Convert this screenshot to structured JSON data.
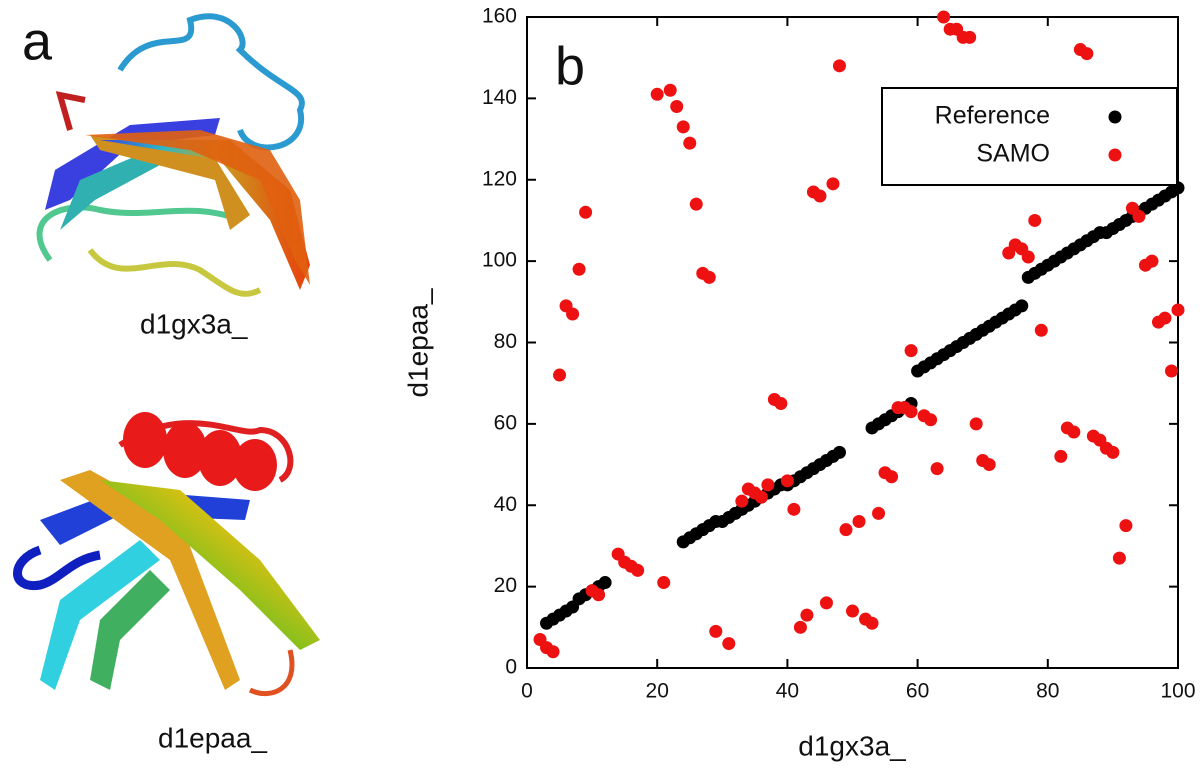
{
  "panel_a": {
    "label": "a",
    "structures": [
      "d1gx3a_",
      "d1epaa_"
    ]
  },
  "chart_data": {
    "type": "scatter",
    "panel_label": "b",
    "xlabel": "d1gx3a_",
    "ylabel": "d1epaa_",
    "xlim": [
      0,
      100
    ],
    "ylim": [
      0,
      160
    ],
    "xticks": [
      0,
      20,
      40,
      60,
      80,
      100
    ],
    "yticks": [
      0,
      20,
      40,
      60,
      80,
      100,
      120,
      140,
      160
    ],
    "legend": "upper right",
    "series": [
      {
        "name": "Reference",
        "color": "#000000",
        "x": [
          3,
          4,
          5,
          6,
          7,
          8,
          9,
          10,
          11,
          12,
          24,
          25,
          26,
          27,
          28,
          29,
          30,
          31,
          32,
          33,
          34,
          35,
          36,
          37,
          38,
          39,
          40,
          41,
          42,
          43,
          44,
          45,
          46,
          47,
          48,
          53,
          54,
          55,
          56,
          57,
          58,
          59,
          60,
          61,
          62,
          63,
          64,
          65,
          66,
          67,
          68,
          69,
          70,
          71,
          72,
          73,
          74,
          75,
          76,
          77,
          78,
          79,
          80,
          81,
          82,
          83,
          84,
          85,
          86,
          87,
          88,
          89,
          90,
          91,
          92,
          93,
          94,
          95,
          96,
          97,
          98,
          99,
          100
        ],
        "values": [
          11,
          12,
          13,
          14,
          15,
          17,
          18,
          19,
          20,
          21,
          31,
          32,
          33,
          34,
          35,
          36,
          36,
          37,
          38,
          39,
          40,
          41,
          42,
          43,
          44,
          45,
          45,
          46,
          47,
          48,
          49,
          50,
          51,
          52,
          53,
          59,
          60,
          61,
          62,
          63,
          64,
          65,
          73,
          74,
          75,
          76,
          77,
          78,
          79,
          80,
          81,
          82,
          83,
          84,
          85,
          86,
          87,
          88,
          89,
          96,
          97,
          98,
          99,
          100,
          101,
          102,
          103,
          104,
          105,
          106,
          107,
          107,
          108,
          109,
          110,
          111,
          112,
          113,
          114,
          115,
          116,
          117,
          118
        ]
      },
      {
        "name": "SAMO",
        "color": "#ee1111",
        "x": [
          2,
          3,
          4,
          5,
          6,
          7,
          8,
          9,
          10,
          11,
          14,
          15,
          16,
          17,
          20,
          21,
          22,
          23,
          24,
          25,
          26,
          27,
          28,
          29,
          31,
          33,
          34,
          35,
          36,
          37,
          38,
          39,
          40,
          41,
          42,
          43,
          44,
          45,
          46,
          47,
          48,
          49,
          50,
          51,
          52,
          53,
          54,
          55,
          56,
          57,
          58,
          59,
          59,
          61,
          62,
          63,
          64,
          65,
          66,
          67,
          68,
          69,
          70,
          71,
          74,
          75,
          76,
          77,
          78,
          79,
          82,
          83,
          84,
          85,
          86,
          87,
          88,
          89,
          90,
          91,
          92,
          93,
          94,
          95,
          96,
          97,
          98,
          99,
          100
        ],
        "values": [
          7,
          5,
          4,
          72,
          89,
          87,
          98,
          112,
          19,
          18,
          28,
          26,
          25,
          24,
          141,
          21,
          142,
          138,
          133,
          129,
          114,
          97,
          96,
          9,
          6,
          41,
          44,
          43,
          42,
          45,
          66,
          65,
          46,
          39,
          10,
          13,
          117,
          116,
          16,
          119,
          148,
          34,
          14,
          36,
          12,
          11,
          38,
          48,
          47,
          64,
          64,
          63,
          78,
          62,
          61,
          49,
          160,
          157,
          157,
          155,
          155,
          60,
          51,
          50,
          102,
          104,
          103,
          101,
          110,
          83,
          52,
          59,
          58,
          152,
          151,
          57,
          56,
          54,
          53,
          27,
          35,
          113,
          111,
          99,
          100,
          85,
          86,
          73,
          88
        ]
      }
    ]
  }
}
